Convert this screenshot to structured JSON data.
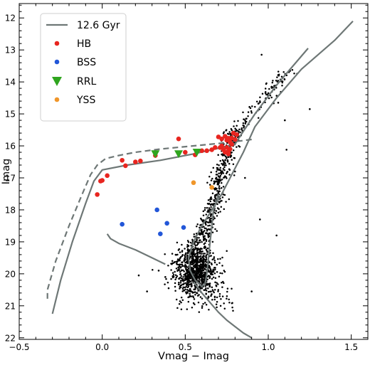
{
  "chart_data": {
    "type": "scatter",
    "title": "",
    "xlabel": "Vmag − Imag",
    "ylabel": "Imag",
    "xlim": [
      -0.5,
      1.6
    ],
    "ylim": [
      22.05,
      11.55
    ],
    "y_inverted": true,
    "xticks": [
      -0.5,
      0.0,
      0.5,
      1.0,
      1.5
    ],
    "xtick_labels": [
      "−0.5",
      "0.0",
      "0.5",
      "1.0",
      "1.5"
    ],
    "yticks": [
      12,
      13,
      14,
      15,
      16,
      17,
      18,
      19,
      20,
      21,
      22
    ],
    "ytick_labels": [
      "12",
      "13",
      "14",
      "15",
      "16",
      "17",
      "18",
      "19",
      "20",
      "21",
      "22"
    ],
    "grid": false,
    "legend_position": "top-left",
    "colors": {
      "isochrone": "#6e7776",
      "HB": "#e8251f",
      "BSS": "#2256d8",
      "RRL": "#2fa51e",
      "YSS": "#f0962a",
      "field": "#000000"
    },
    "legend": [
      {
        "label": "12.6 Gyr",
        "marker": "line",
        "series": "isochrone"
      },
      {
        "label": "HB",
        "marker": "circle",
        "series": "HB"
      },
      {
        "label": "BSS",
        "marker": "circle",
        "series": "BSS"
      },
      {
        "label": "RRL",
        "marker": "triangle-down",
        "series": "RRL"
      },
      {
        "label": "YSS",
        "marker": "circle",
        "series": "YSS"
      }
    ],
    "series": [
      {
        "name": "12.6 Gyr",
        "kind": "line",
        "style": "solid",
        "x": [
          1.51,
          1.4,
          1.2,
          1.05,
          0.92,
          0.85,
          0.78,
          0.72,
          0.66,
          0.6,
          0.55,
          0.52,
          0.53,
          0.56,
          0.6,
          0.62,
          0.63,
          0.64,
          0.65,
          0.66,
          0.67,
          0.69,
          0.7
        ],
        "y": [
          12.1,
          12.7,
          13.6,
          14.5,
          15.4,
          16.2,
          16.9,
          17.5,
          18.0,
          18.5,
          19.0,
          19.5,
          19.9,
          20.2,
          20.4,
          20.3,
          20.0,
          19.5,
          19.0,
          18.5,
          18.0,
          17.7,
          17.5
        ]
      },
      {
        "name": "12.6 Gyr",
        "kind": "line",
        "style": "solid",
        "x": [
          1.24,
          1.05,
          0.92,
          0.83,
          0.8,
          0.72,
          0.55,
          0.35,
          0.15,
          0.0,
          -0.05,
          -0.1,
          -0.18,
          -0.25,
          -0.3
        ],
        "y": [
          12.95,
          14.1,
          15.0,
          15.7,
          15.95,
          16.05,
          16.25,
          16.45,
          16.6,
          16.75,
          17.1,
          17.8,
          19.0,
          20.2,
          21.25
        ]
      },
      {
        "name": "12.6 Gyr",
        "kind": "line",
        "style": "dashed",
        "x": [
          0.9,
          0.75,
          0.55,
          0.35,
          0.2,
          0.1,
          0.02,
          -0.03,
          -0.07,
          -0.12,
          -0.2,
          -0.28,
          -0.33,
          -0.33
        ],
        "y": [
          15.8,
          15.9,
          16.0,
          16.1,
          16.2,
          16.3,
          16.4,
          16.6,
          16.9,
          17.5,
          18.5,
          19.6,
          20.5,
          20.85
        ]
      },
      {
        "name": "12.6 Gyr",
        "kind": "line",
        "style": "solid",
        "x": [
          0.03,
          0.05,
          0.1,
          0.2,
          0.3,
          0.38
        ],
        "y": [
          18.75,
          18.9,
          19.05,
          19.25,
          19.5,
          19.7
        ]
      },
      {
        "name": "12.6 Gyr",
        "kind": "line",
        "style": "solid",
        "x": [
          0.55,
          0.6,
          0.65,
          0.7,
          0.75,
          0.8,
          0.85,
          0.9
        ],
        "y": [
          20.25,
          20.6,
          20.9,
          21.2,
          21.45,
          21.65,
          21.85,
          22.0
        ]
      },
      {
        "name": "HB",
        "kind": "points",
        "x": [
          -0.03,
          -0.01,
          0.0,
          0.03,
          0.12,
          0.14,
          0.2,
          0.23,
          0.32,
          0.46,
          0.5,
          0.56,
          0.6,
          0.63,
          0.66,
          0.68,
          0.7,
          0.71,
          0.72,
          0.73,
          0.74,
          0.74,
          0.75,
          0.75,
          0.76,
          0.76,
          0.77,
          0.77,
          0.78,
          0.78,
          0.79,
          0.8,
          0.81,
          0.72,
          0.76
        ],
        "y": [
          17.52,
          17.1,
          17.08,
          16.93,
          16.45,
          16.62,
          16.5,
          16.47,
          16.3,
          15.78,
          16.2,
          16.28,
          16.15,
          16.15,
          16.12,
          16.05,
          15.72,
          16.05,
          15.78,
          16.12,
          15.7,
          16.2,
          15.82,
          16.05,
          15.76,
          16.18,
          15.88,
          16.1,
          15.75,
          15.95,
          15.6,
          15.8,
          15.65,
          16.0,
          16.25
        ]
      },
      {
        "name": "BSS",
        "kind": "points",
        "x": [
          0.12,
          0.33,
          0.35,
          0.39,
          0.49
        ],
        "y": [
          18.45,
          18.0,
          18.75,
          18.42,
          18.55
        ]
      },
      {
        "name": "RRL",
        "kind": "points",
        "x": [
          0.32,
          0.46,
          0.57
        ],
        "y": [
          16.25,
          16.25,
          16.2
        ]
      },
      {
        "name": "YSS",
        "kind": "points",
        "x": [
          0.55,
          0.66
        ],
        "y": [
          17.15,
          17.3
        ]
      },
      {
        "name": "field",
        "kind": "points",
        "x": [
          0.96,
          1.02,
          1.06,
          1.1,
          1.11,
          1.25,
          0.22,
          0.27,
          0.34,
          0.38,
          0.4,
          0.9,
          0.86,
          0.95,
          1.05,
          0.8
        ],
        "y": [
          13.15,
          14.15,
          14.65,
          15.2,
          16.12,
          14.85,
          20.05,
          20.55,
          19.9,
          20.1,
          20.45,
          20.55,
          17.0,
          18.3,
          18.8,
          16.8
        ]
      }
    ]
  }
}
